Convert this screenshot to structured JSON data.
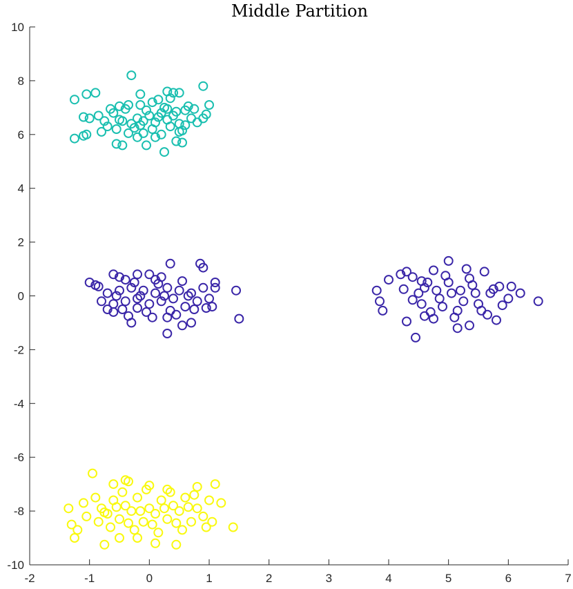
{
  "chart_data": {
    "type": "scatter",
    "title": "Middle Partition",
    "xlabel": "",
    "ylabel": "",
    "xlim": [
      -2,
      7
    ],
    "ylim": [
      -10,
      10
    ],
    "xticks": [
      -2,
      -1,
      0,
      1,
      2,
      3,
      4,
      5,
      6,
      7
    ],
    "yticks": [
      -10,
      -8,
      -6,
      -4,
      -2,
      0,
      2,
      4,
      6,
      8,
      10
    ],
    "grid": false,
    "marker": "open-circle",
    "series": [
      {
        "color": "#1abfb0",
        "points": [
          [
            -1.25,
            7.3
          ],
          [
            -1.05,
            7.5
          ],
          [
            -0.9,
            7.55
          ],
          [
            -0.3,
            8.2
          ],
          [
            -0.15,
            7.5
          ],
          [
            0.3,
            7.6
          ],
          [
            0.5,
            7.55
          ],
          [
            0.9,
            7.8
          ],
          [
            1.0,
            7.1
          ],
          [
            -1.1,
            6.65
          ],
          [
            -1.0,
            6.6
          ],
          [
            -0.85,
            6.7
          ],
          [
            -1.1,
            5.95
          ],
          [
            -1.05,
            6.0
          ],
          [
            -1.25,
            5.85
          ],
          [
            -0.55,
            5.65
          ],
          [
            -0.45,
            5.6
          ],
          [
            -0.2,
            5.9
          ],
          [
            -0.05,
            5.6
          ],
          [
            0.25,
            5.35
          ],
          [
            0.45,
            5.75
          ],
          [
            0.55,
            5.7
          ],
          [
            0.9,
            6.6
          ],
          [
            0.95,
            6.75
          ],
          [
            0.8,
            6.45
          ],
          [
            -0.7,
            6.3
          ],
          [
            -0.6,
            6.8
          ],
          [
            -0.5,
            6.55
          ],
          [
            -0.4,
            6.95
          ],
          [
            -0.3,
            6.4
          ],
          [
            -0.2,
            6.6
          ],
          [
            -0.1,
            6.5
          ],
          [
            0.0,
            6.7
          ],
          [
            0.1,
            6.45
          ],
          [
            0.2,
            6.8
          ],
          [
            0.3,
            6.55
          ],
          [
            0.4,
            6.7
          ],
          [
            0.5,
            6.4
          ],
          [
            0.6,
            6.9
          ],
          [
            0.7,
            6.6
          ],
          [
            -0.65,
            6.95
          ],
          [
            -0.35,
            7.1
          ],
          [
            -0.25,
            6.25
          ],
          [
            -0.05,
            6.9
          ],
          [
            0.05,
            6.2
          ],
          [
            0.15,
            6.65
          ],
          [
            0.25,
            7.0
          ],
          [
            0.35,
            6.3
          ],
          [
            0.45,
            6.85
          ],
          [
            0.55,
            6.15
          ],
          [
            -0.55,
            6.2
          ],
          [
            -0.45,
            6.5
          ],
          [
            -0.35,
            6.05
          ],
          [
            -0.15,
            6.35
          ],
          [
            0.05,
            7.2
          ],
          [
            0.15,
            7.3
          ],
          [
            0.35,
            7.35
          ],
          [
            0.65,
            7.05
          ],
          [
            0.75,
            6.95
          ],
          [
            -0.8,
            6.1
          ],
          [
            -0.75,
            6.5
          ],
          [
            -0.15,
            7.1
          ],
          [
            0.1,
            5.9
          ],
          [
            0.5,
            6.1
          ],
          [
            0.6,
            6.35
          ],
          [
            0.2,
            6.0
          ],
          [
            -0.1,
            6.05
          ],
          [
            0.3,
            6.95
          ],
          [
            -0.5,
            7.05
          ],
          [
            0.4,
            7.55
          ]
        ]
      },
      {
        "color": "#3a26a8",
        "points": [
          [
            -1.0,
            0.5
          ],
          [
            -0.9,
            0.4
          ],
          [
            -0.6,
            0.8
          ],
          [
            -0.5,
            0.7
          ],
          [
            -0.4,
            0.6
          ],
          [
            -0.2,
            0.8
          ],
          [
            0.0,
            0.8
          ],
          [
            0.2,
            0.7
          ],
          [
            0.35,
            1.2
          ],
          [
            0.85,
            1.2
          ],
          [
            0.9,
            1.05
          ],
          [
            1.1,
            0.5
          ],
          [
            1.45,
            0.2
          ],
          [
            1.5,
            -0.85
          ],
          [
            1.05,
            -0.4
          ],
          [
            0.7,
            -1.0
          ],
          [
            0.55,
            -1.1
          ],
          [
            0.3,
            -1.4
          ],
          [
            -0.3,
            -1.0
          ],
          [
            -0.6,
            -0.6
          ],
          [
            -0.8,
            -0.2
          ],
          [
            -0.7,
            0.1
          ],
          [
            -0.6,
            -0.3
          ],
          [
            -0.5,
            0.2
          ],
          [
            -0.4,
            -0.2
          ],
          [
            -0.3,
            0.3
          ],
          [
            -0.2,
            -0.1
          ],
          [
            -0.1,
            0.2
          ],
          [
            0.0,
            -0.3
          ],
          [
            0.1,
            0.1
          ],
          [
            0.2,
            -0.2
          ],
          [
            0.3,
            0.3
          ],
          [
            0.4,
            -0.1
          ],
          [
            0.5,
            0.2
          ],
          [
            0.6,
            -0.4
          ],
          [
            0.7,
            0.1
          ],
          [
            0.8,
            -0.2
          ],
          [
            0.9,
            0.3
          ],
          [
            1.0,
            -0.1
          ],
          [
            -0.45,
            -0.5
          ],
          [
            -0.25,
            0.5
          ],
          [
            -0.05,
            -0.6
          ],
          [
            0.15,
            0.45
          ],
          [
            0.35,
            -0.55
          ],
          [
            0.55,
            0.55
          ],
          [
            0.75,
            -0.5
          ],
          [
            -0.35,
            -0.75
          ],
          [
            0.05,
            -0.8
          ],
          [
            0.45,
            -0.7
          ],
          [
            -0.15,
            0.0
          ],
          [
            0.25,
            0.0
          ],
          [
            -0.55,
            0.0
          ],
          [
            0.65,
            0.0
          ],
          [
            -0.85,
            0.35
          ],
          [
            0.95,
            -0.45
          ],
          [
            1.1,
            0.3
          ],
          [
            -0.7,
            -0.5
          ],
          [
            0.1,
            0.6
          ],
          [
            -0.2,
            -0.45
          ],
          [
            0.3,
            -0.8
          ],
          [
            3.8,
            0.2
          ],
          [
            3.85,
            -0.2
          ],
          [
            3.9,
            -0.55
          ],
          [
            4.0,
            0.6
          ],
          [
            4.2,
            0.8
          ],
          [
            4.3,
            0.9
          ],
          [
            4.45,
            -1.55
          ],
          [
            4.3,
            -0.95
          ],
          [
            4.4,
            0.7
          ],
          [
            4.5,
            0.1
          ],
          [
            4.55,
            -0.3
          ],
          [
            4.6,
            0.3
          ],
          [
            4.7,
            -0.6
          ],
          [
            4.75,
            0.95
          ],
          [
            4.8,
            0.2
          ],
          [
            4.9,
            -0.4
          ],
          [
            5.0,
            1.3
          ],
          [
            5.0,
            0.5
          ],
          [
            5.1,
            -0.8
          ],
          [
            5.15,
            -1.2
          ],
          [
            5.2,
            0.2
          ],
          [
            5.3,
            1.0
          ],
          [
            5.35,
            -1.1
          ],
          [
            5.4,
            0.4
          ],
          [
            5.5,
            -0.3
          ],
          [
            5.6,
            0.9
          ],
          [
            5.65,
            -0.7
          ],
          [
            5.7,
            0.1
          ],
          [
            5.8,
            -0.9
          ],
          [
            5.85,
            0.35
          ],
          [
            6.0,
            -0.1
          ],
          [
            6.05,
            0.35
          ],
          [
            6.2,
            0.1
          ],
          [
            6.5,
            -0.2
          ],
          [
            4.65,
            0.5
          ],
          [
            4.85,
            -0.1
          ],
          [
            5.05,
            0.1
          ],
          [
            5.25,
            -0.2
          ],
          [
            5.45,
            0.1
          ],
          [
            4.55,
            0.55
          ],
          [
            4.95,
            0.75
          ],
          [
            5.35,
            0.65
          ],
          [
            5.55,
            -0.55
          ],
          [
            4.75,
            -0.85
          ],
          [
            5.15,
            -0.55
          ],
          [
            4.4,
            -0.15
          ],
          [
            4.25,
            0.25
          ],
          [
            5.75,
            0.25
          ],
          [
            5.9,
            -0.35
          ],
          [
            4.6,
            -0.75
          ]
        ]
      },
      {
        "color": "#f9f90f",
        "points": [
          [
            -1.35,
            -7.9
          ],
          [
            -1.3,
            -8.5
          ],
          [
            -1.2,
            -8.7
          ],
          [
            -1.25,
            -9.0
          ],
          [
            -0.95,
            -6.6
          ],
          [
            -0.75,
            -9.25
          ],
          [
            -0.6,
            -7.0
          ],
          [
            -0.4,
            -6.85
          ],
          [
            -0.35,
            -6.9
          ],
          [
            0.0,
            -7.05
          ],
          [
            0.3,
            -7.2
          ],
          [
            0.8,
            -7.1
          ],
          [
            1.1,
            -7.0
          ],
          [
            1.2,
            -7.7
          ],
          [
            1.4,
            -8.6
          ],
          [
            0.45,
            -9.25
          ],
          [
            0.1,
            -9.2
          ],
          [
            -0.2,
            -9.0
          ],
          [
            -0.5,
            -9.0
          ],
          [
            -1.05,
            -8.2
          ],
          [
            -1.1,
            -7.7
          ],
          [
            -0.9,
            -7.5
          ],
          [
            -0.8,
            -7.9
          ],
          [
            -0.7,
            -8.1
          ],
          [
            -0.6,
            -7.6
          ],
          [
            -0.5,
            -8.3
          ],
          [
            -0.4,
            -7.8
          ],
          [
            -0.3,
            -8.0
          ],
          [
            -0.2,
            -7.5
          ],
          [
            -0.1,
            -8.4
          ],
          [
            0.0,
            -7.9
          ],
          [
            0.1,
            -8.1
          ],
          [
            0.2,
            -7.6
          ],
          [
            0.3,
            -8.3
          ],
          [
            0.4,
            -7.8
          ],
          [
            0.5,
            -8.0
          ],
          [
            0.6,
            -7.5
          ],
          [
            0.7,
            -8.4
          ],
          [
            0.8,
            -7.9
          ],
          [
            0.9,
            -8.2
          ],
          [
            1.0,
            -7.6
          ],
          [
            1.05,
            -8.4
          ],
          [
            -0.65,
            -8.6
          ],
          [
            -0.45,
            -7.3
          ],
          [
            -0.25,
            -8.7
          ],
          [
            -0.05,
            -7.2
          ],
          [
            0.15,
            -8.8
          ],
          [
            0.35,
            -7.3
          ],
          [
            0.55,
            -8.7
          ],
          [
            0.75,
            -7.4
          ],
          [
            -0.85,
            -8.4
          ],
          [
            0.95,
            -8.6
          ],
          [
            -0.15,
            -8.0
          ],
          [
            0.05,
            -8.5
          ],
          [
            0.25,
            -7.9
          ],
          [
            -0.35,
            -8.45
          ],
          [
            0.45,
            -8.45
          ],
          [
            -0.55,
            -7.85
          ],
          [
            0.65,
            -7.85
          ],
          [
            -0.75,
            -8.05
          ]
        ]
      }
    ]
  }
}
